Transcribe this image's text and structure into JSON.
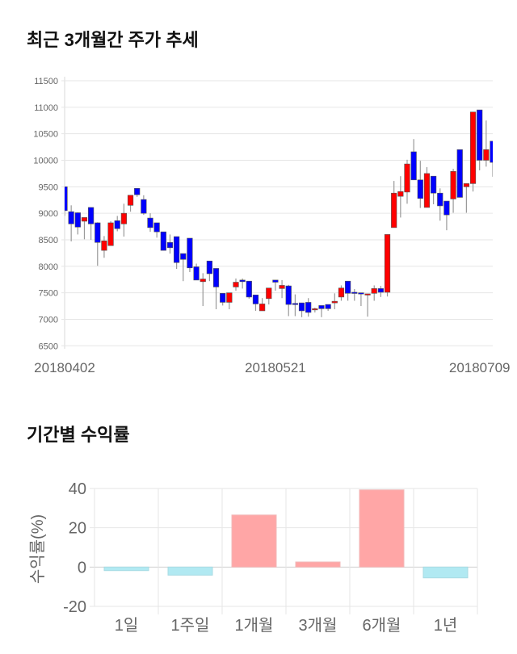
{
  "sections": {
    "price_title": "최근 3개월간 주가 추세",
    "returns_title": "기간별 수익률"
  },
  "colors": {
    "up": "#ff0000",
    "down": "#0000ff",
    "positive_bar": "#ffa6a6",
    "negative_bar": "#b1e9f2"
  },
  "chart_data": [
    {
      "type": "candlestick",
      "title": "최근 3개월간 주가 추세",
      "ylim": [
        6500,
        11500
      ],
      "y_ticks": [
        "11500",
        "11000",
        "10500",
        "10000",
        "9500",
        "9000",
        "8500",
        "8000",
        "7500",
        "7000",
        "6500"
      ],
      "x_ticks": [
        {
          "label": "20180402",
          "index": 0
        },
        {
          "label": "20180521",
          "index": 32
        },
        {
          "label": "20180709",
          "index": 63
        }
      ],
      "grid": true,
      "ohlc_fields": [
        "open",
        "high",
        "low",
        "close"
      ],
      "candles": [
        [
          9500,
          9500,
          8950,
          9050
        ],
        [
          9030,
          9150,
          8470,
          8800
        ],
        [
          9010,
          9020,
          8600,
          8740
        ],
        [
          8850,
          8920,
          8510,
          8920
        ],
        [
          9110,
          9110,
          8500,
          8800
        ],
        [
          8820,
          8830,
          8010,
          8450
        ],
        [
          8300,
          8570,
          8160,
          8480
        ],
        [
          8390,
          8850,
          8390,
          8820
        ],
        [
          8860,
          8950,
          8660,
          8710
        ],
        [
          8800,
          9180,
          8560,
          9000
        ],
        [
          9150,
          9340,
          9030,
          9340
        ],
        [
          9470,
          9470,
          9310,
          9350
        ],
        [
          9260,
          9340,
          8970,
          9000
        ],
        [
          8910,
          9000,
          8650,
          8730
        ],
        [
          8820,
          8820,
          8540,
          8650
        ],
        [
          8650,
          8650,
          8300,
          8300
        ],
        [
          8450,
          8600,
          8240,
          8350
        ],
        [
          8560,
          8560,
          7950,
          8070
        ],
        [
          8240,
          8240,
          7720,
          8130
        ],
        [
          8530,
          8530,
          7890,
          7970
        ],
        [
          7990,
          8050,
          7740,
          7740
        ],
        [
          7710,
          7870,
          7250,
          7760
        ],
        [
          8100,
          8100,
          7720,
          7860
        ],
        [
          7960,
          7960,
          7190,
          7610
        ],
        [
          7490,
          7490,
          7260,
          7320
        ],
        [
          7320,
          7500,
          7190,
          7500
        ],
        [
          7610,
          7770,
          7540,
          7700
        ],
        [
          7740,
          7770,
          7580,
          7710
        ],
        [
          7720,
          7720,
          7390,
          7420
        ],
        [
          7460,
          7460,
          7160,
          7290
        ],
        [
          7160,
          7400,
          7160,
          7290
        ],
        [
          7390,
          7590,
          7280,
          7590
        ],
        [
          7740,
          7740,
          7540,
          7700
        ],
        [
          7580,
          7740,
          7400,
          7640
        ],
        [
          7630,
          7650,
          7060,
          7280
        ],
        [
          7300,
          7470,
          7060,
          7290
        ],
        [
          7310,
          7310,
          7040,
          7160
        ],
        [
          7320,
          7400,
          7050,
          7130
        ],
        [
          7190,
          7220,
          7130,
          7200
        ],
        [
          7260,
          7260,
          7040,
          7200
        ],
        [
          7280,
          7280,
          7160,
          7200
        ],
        [
          7310,
          7490,
          7190,
          7340
        ],
        [
          7420,
          7640,
          7350,
          7590
        ],
        [
          7720,
          7720,
          7350,
          7490
        ],
        [
          7510,
          7570,
          7350,
          7490
        ],
        [
          7500,
          7500,
          7250,
          7490
        ],
        [
          7480,
          7480,
          7050,
          7480
        ],
        [
          7490,
          7640,
          7350,
          7580
        ],
        [
          7580,
          7630,
          7420,
          7510
        ],
        [
          7510,
          8600,
          7430,
          8600
        ],
        [
          8730,
          9610,
          8730,
          9380
        ],
        [
          9320,
          9700,
          8920,
          9410
        ],
        [
          9400,
          10010,
          9180,
          9930
        ],
        [
          10160,
          10400,
          9630,
          9630
        ],
        [
          9630,
          9990,
          9100,
          9280
        ],
        [
          9110,
          9870,
          9110,
          9750
        ],
        [
          9700,
          9700,
          9170,
          9380
        ],
        [
          9380,
          9470,
          8860,
          9140
        ],
        [
          9230,
          9230,
          8680,
          8970
        ],
        [
          9270,
          9840,
          9010,
          9790
        ],
        [
          10200,
          10200,
          9300,
          9300
        ],
        [
          9500,
          9560,
          9010,
          9560
        ],
        [
          9560,
          10910,
          9410,
          10910
        ],
        [
          10950,
          10950,
          9810,
          10000
        ],
        [
          10000,
          10750,
          9880,
          10200
        ],
        [
          10360,
          10360,
          9690,
          9960
        ]
      ]
    },
    {
      "type": "bar",
      "title": "기간별 수익률",
      "ylabel": "수익률(%)",
      "ylim": [
        -20,
        40
      ],
      "y_ticks": [
        "40",
        "20",
        "0",
        "-20"
      ],
      "grid": true,
      "categories": [
        "1일",
        "1주일",
        "1개월",
        "3개월",
        "6개월",
        "1년"
      ],
      "values": [
        -1.8,
        -4.1,
        26.5,
        2.6,
        39.3,
        -5.5
      ]
    }
  ]
}
